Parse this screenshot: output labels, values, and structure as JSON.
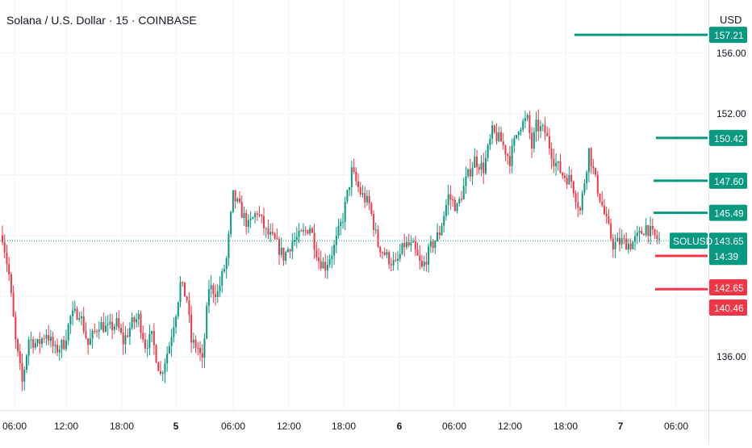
{
  "header": {
    "title": "Solana / U.S. Dollar · 15 · COINBASE",
    "currency": "USD"
  },
  "colors": {
    "up": "#089981",
    "down": "#f23645",
    "grid": "#f0f3fa",
    "axis_text": "#131722",
    "dotted_line": "#089981"
  },
  "chart_data": {
    "type": "candlestick",
    "symbol": "SOLUSD",
    "last_price": 143.65,
    "countdown": "14:39",
    "ylim": [
      132.5,
      159.5
    ],
    "y_ticks": [
      136.0,
      140.0,
      144.0,
      148.0,
      152.0,
      156.0
    ],
    "y_tick_labels_visible": [
      "136.00",
      "152.00",
      "156.00"
    ],
    "x_ticks": [
      "06:00",
      "12:00",
      "18:00",
      "5",
      "06:00",
      "12:00",
      "18:00",
      "6",
      "06:00",
      "12:00",
      "18:00",
      "7",
      "06:00"
    ],
    "x_tick_bold": [
      false,
      false,
      false,
      true,
      false,
      false,
      false,
      true,
      false,
      false,
      false,
      true,
      false
    ],
    "levels": [
      {
        "price": 157.21,
        "label": "157.21",
        "type": "resistance",
        "line_from_index": 268
      },
      {
        "price": 150.42,
        "label": "150.42",
        "type": "resistance",
        "line_from_index": 300
      },
      {
        "price": 147.6,
        "label": "147.60",
        "type": "resistance",
        "line_from_index": 300
      },
      {
        "price": 145.49,
        "label": "145.49",
        "type": "resistance",
        "line_from_index": 300
      },
      {
        "price": 142.65,
        "label": "142.65",
        "type": "support",
        "line_from_index": 300
      },
      {
        "price": 140.46,
        "label": "140.46",
        "type": "support",
        "line_from_index": 300
      }
    ],
    "price_path": [
      [
        0,
        144.0
      ],
      [
        6,
        141.4
      ],
      [
        12,
        137.0
      ],
      [
        18,
        134.3
      ],
      [
        24,
        137.2
      ],
      [
        32,
        136.8
      ],
      [
        40,
        137.6
      ],
      [
        48,
        136.4
      ],
      [
        56,
        136.9
      ],
      [
        62,
        138.6
      ],
      [
        70,
        139.0
      ],
      [
        78,
        136.8
      ],
      [
        88,
        138.2
      ],
      [
        96,
        137.8
      ],
      [
        104,
        138.2
      ],
      [
        110,
        137.0
      ],
      [
        118,
        138.2
      ],
      [
        124,
        138.6
      ],
      [
        130,
        136.8
      ],
      [
        136,
        137.3
      ],
      [
        144,
        134.8
      ],
      [
        152,
        136.8
      ],
      [
        158,
        139.0
      ],
      [
        162,
        140.8
      ],
      [
        168,
        139.8
      ],
      [
        172,
        137.0
      ],
      [
        178,
        136.6
      ],
      [
        182,
        135.6
      ],
      [
        188,
        140.6
      ],
      [
        196,
        140.2
      ],
      [
        204,
        142.4
      ],
      [
        210,
        146.6
      ],
      [
        216,
        145.8
      ],
      [
        224,
        144.6
      ],
      [
        232,
        145.6
      ],
      [
        240,
        144.2
      ],
      [
        248,
        143.6
      ],
      [
        256,
        142.6
      ],
      [
        264,
        143.6
      ],
      [
        272,
        144.0
      ],
      [
        280,
        144.6
      ],
      [
        288,
        142.4
      ],
      [
        294,
        142.0
      ],
      [
        302,
        143.2
      ],
      [
        310,
        145.2
      ],
      [
        318,
        148.2
      ],
      [
        326,
        146.8
      ],
      [
        334,
        146.0
      ],
      [
        342,
        143.4
      ],
      [
        350,
        142.6
      ],
      [
        358,
        142.0
      ],
      [
        366,
        143.4
      ],
      [
        374,
        143.2
      ],
      [
        382,
        141.8
      ],
      [
        390,
        143.2
      ],
      [
        398,
        144.2
      ],
      [
        406,
        146.6
      ],
      [
        414,
        145.8
      ],
      [
        422,
        147.6
      ],
      [
        430,
        149.0
      ],
      [
        438,
        148.4
      ],
      [
        446,
        150.8
      ],
      [
        454,
        150.2
      ],
      [
        462,
        149.0
      ],
      [
        470,
        151.2
      ],
      [
        478,
        151.6
      ],
      [
        482,
        149.8
      ],
      [
        486,
        151.2
      ],
      [
        494,
        150.8
      ],
      [
        502,
        149.0
      ],
      [
        510,
        148.0
      ],
      [
        518,
        147.6
      ],
      [
        526,
        145.6
      ],
      [
        534,
        149.6
      ],
      [
        540,
        147.6
      ],
      [
        548,
        145.4
      ],
      [
        556,
        143.4
      ],
      [
        564,
        143.6
      ],
      [
        572,
        143.4
      ],
      [
        580,
        144.0
      ],
      [
        586,
        144.6
      ],
      [
        592,
        144.0
      ],
      [
        599,
        143.65
      ]
    ],
    "candle_count": 300
  }
}
